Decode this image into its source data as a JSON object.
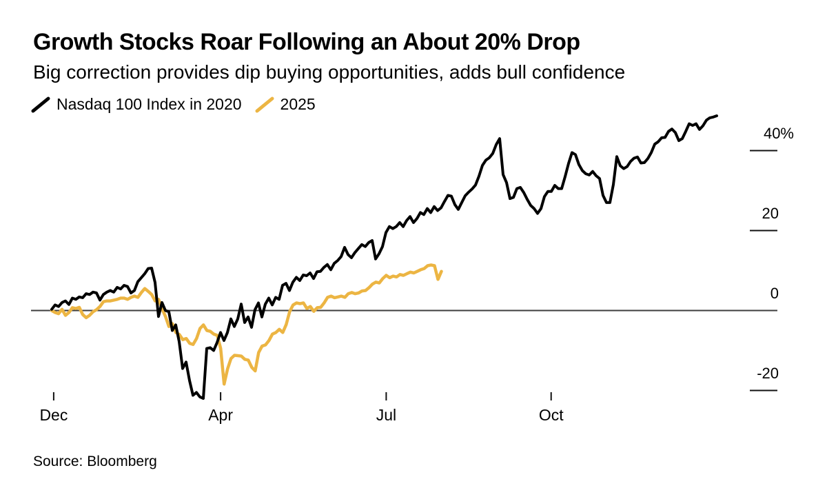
{
  "header": {
    "title": "Growth Stocks Roar Following an About 20% Drop",
    "subtitle": "Big correction provides dip buying opportunities, adds bull confidence"
  },
  "footer": {
    "source": "Source: Bloomberg"
  },
  "colors": {
    "series_2020": "#000000",
    "series_2025": "#ECB543",
    "zero_line": "#3d3d3d",
    "tick": "#111111",
    "background": "#ffffff"
  },
  "chart_data": {
    "type": "line",
    "title": "Growth Stocks Roar Following an About 20% Drop",
    "subtitle": "Big correction provides dip buying opportunities, adds bull confidence",
    "source": "Source: Bloomberg",
    "grid": false,
    "legend_position": "top-left",
    "baseline_value": 0,
    "y_axis": {
      "unit": "%",
      "side": "right",
      "range": [
        -24,
        49
      ],
      "ticks": [
        {
          "label": "40%",
          "value": 40
        },
        {
          "label": "20",
          "value": 20
        },
        {
          "label": "0",
          "value": 0
        },
        {
          "label": "-20",
          "value": -20
        }
      ]
    },
    "x_axis": {
      "ticks": [
        {
          "label": "Dec",
          "t": 0.003
        },
        {
          "label": "Apr",
          "t": 0.254
        },
        {
          "label": "Jul",
          "t": 0.503
        },
        {
          "label": "Oct",
          "t": 0.751
        }
      ]
    },
    "series": [
      {
        "name": "Nasdaq 100 Index in 2020",
        "color": "#000000",
        "stroke_width": 4,
        "t_start": 0.0,
        "t_end": 1.0,
        "values": [
          0.3,
          1.4,
          1.0,
          2.0,
          2.4,
          1.5,
          3.1,
          2.8,
          3.4,
          3.2,
          4.2,
          4.0,
          4.6,
          4.4,
          2.6,
          4.0,
          4.6,
          5.0,
          4.6,
          5.8,
          5.4,
          6.3,
          6.0,
          4.4,
          5.0,
          7.2,
          8.2,
          9.2,
          10.5,
          10.6,
          7.0,
          -1.5,
          2.0,
          0.0,
          -0.3,
          -5.0,
          -3.6,
          -7.8,
          -14.5,
          -12.9,
          -17.5,
          -21.2,
          -20.5,
          -21.6,
          -22.0,
          -9.5,
          -9.3,
          -10.0,
          -8.0,
          -5.5,
          -7.5,
          -5.5,
          -2.1,
          -4.0,
          -2.1,
          1.6,
          -3.0,
          -1.6,
          -4.2,
          0.2,
          1.9,
          -1.6,
          1.6,
          3.1,
          1.4,
          3.3,
          2.8,
          6.3,
          6.8,
          5.0,
          7.1,
          8.3,
          7.5,
          8.9,
          8.7,
          9.4,
          8.0,
          9.7,
          9.8,
          10.8,
          11.5,
          10.2,
          11.8,
          12.5,
          13.5,
          15.8,
          14.0,
          13.2,
          14.5,
          15.5,
          16.5,
          16.0,
          17.0,
          17.5,
          12.9,
          14.2,
          16.0,
          19.5,
          21.0,
          20.5,
          21.0,
          22.0,
          21.0,
          22.5,
          23.5,
          22.0,
          23.0,
          24.5,
          24.0,
          25.5,
          24.5,
          26.0,
          25.0,
          25.7,
          27.3,
          28.8,
          28.6,
          26.5,
          25.3,
          27.0,
          28.7,
          29.6,
          30.4,
          31.4,
          33.6,
          36.3,
          37.6,
          38.2,
          39.3,
          41.5,
          43.0,
          34.0,
          32.0,
          28.0,
          28.3,
          30.5,
          30.8,
          29.5,
          27.8,
          26.3,
          25.5,
          24.3,
          25.5,
          28.5,
          29.8,
          29.8,
          31.3,
          30.5,
          30.5,
          33.5,
          36.8,
          39.5,
          39.0,
          36.5,
          35.0,
          34.2,
          33.9,
          34.8,
          33.7,
          33.0,
          28.8,
          27.0,
          27.0,
          31.5,
          38.5,
          36.2,
          35.5,
          36.0,
          37.3,
          38.1,
          38.4,
          36.9,
          37.0,
          38.0,
          39.5,
          41.6,
          42.2,
          43.2,
          43.3,
          44.8,
          45.4,
          44.5,
          42.5,
          43.0,
          44.8,
          46.7,
          46.3,
          46.7,
          45.3,
          46.2,
          47.6,
          48.2,
          48.4,
          48.7
        ]
      },
      {
        "name": "2025",
        "color": "#ECB543",
        "stroke_width": 4.5,
        "t_start": 0.0,
        "t_end": 0.586,
        "values": [
          0.0,
          -0.5,
          -0.8,
          0.3,
          -1.2,
          -0.5,
          0.7,
          0.5,
          0.8,
          -1.0,
          -1.8,
          -1.2,
          -0.3,
          0.2,
          1.0,
          2.2,
          2.4,
          2.4,
          2.6,
          2.8,
          3.1,
          3.1,
          2.8,
          3.3,
          3.6,
          3.3,
          4.5,
          5.5,
          4.8,
          4.0,
          2.4,
          2.8,
          0.5,
          -1.5,
          -4.0,
          -3.3,
          -5.5,
          -6.0,
          -7.3,
          -7.0,
          -8.2,
          -8.5,
          -7.0,
          -4.5,
          -3.6,
          -5.0,
          -5.2,
          -5.9,
          -6.2,
          -9.5,
          -18.4,
          -14.6,
          -12.0,
          -11.2,
          -11.3,
          -11.4,
          -12.2,
          -12.4,
          -14.2,
          -15.1,
          -10.5,
          -8.9,
          -8.6,
          -7.5,
          -5.9,
          -5.5,
          -4.7,
          -5.5,
          -3.5,
          -0.3,
          1.4,
          1.9,
          1.7,
          1.9,
          0.5,
          1.0,
          -0.2,
          0.7,
          0.8,
          1.9,
          3.3,
          3.6,
          3.2,
          3.4,
          3.6,
          3.3,
          4.2,
          4.5,
          4.2,
          4.4,
          4.9,
          5.0,
          5.7,
          6.6,
          7.1,
          6.9,
          8.0,
          8.8,
          8.2,
          8.6,
          8.4,
          9.0,
          8.8,
          9.2,
          9.6,
          9.4,
          9.8,
          10.2,
          10.5,
          11.2,
          11.4,
          11.2,
          7.8,
          9.8
        ]
      }
    ]
  }
}
